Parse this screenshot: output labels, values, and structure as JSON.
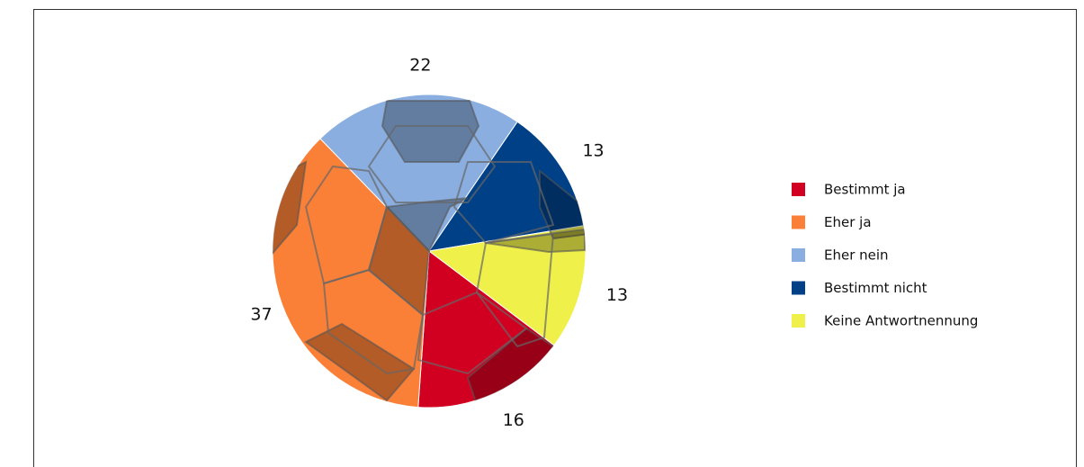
{
  "chart_data": {
    "type": "pie",
    "categories": [
      "Bestimmt ja",
      "Eher ja",
      "Eher nein",
      "Bestimmt nicht",
      "Keine Antwortnennung"
    ],
    "values": [
      16,
      37,
      22,
      13,
      13
    ],
    "colors": [
      "#d20020",
      "#fa8037",
      "#8aaee0",
      "#004086",
      "#eff04a"
    ],
    "legend": "right"
  }
}
